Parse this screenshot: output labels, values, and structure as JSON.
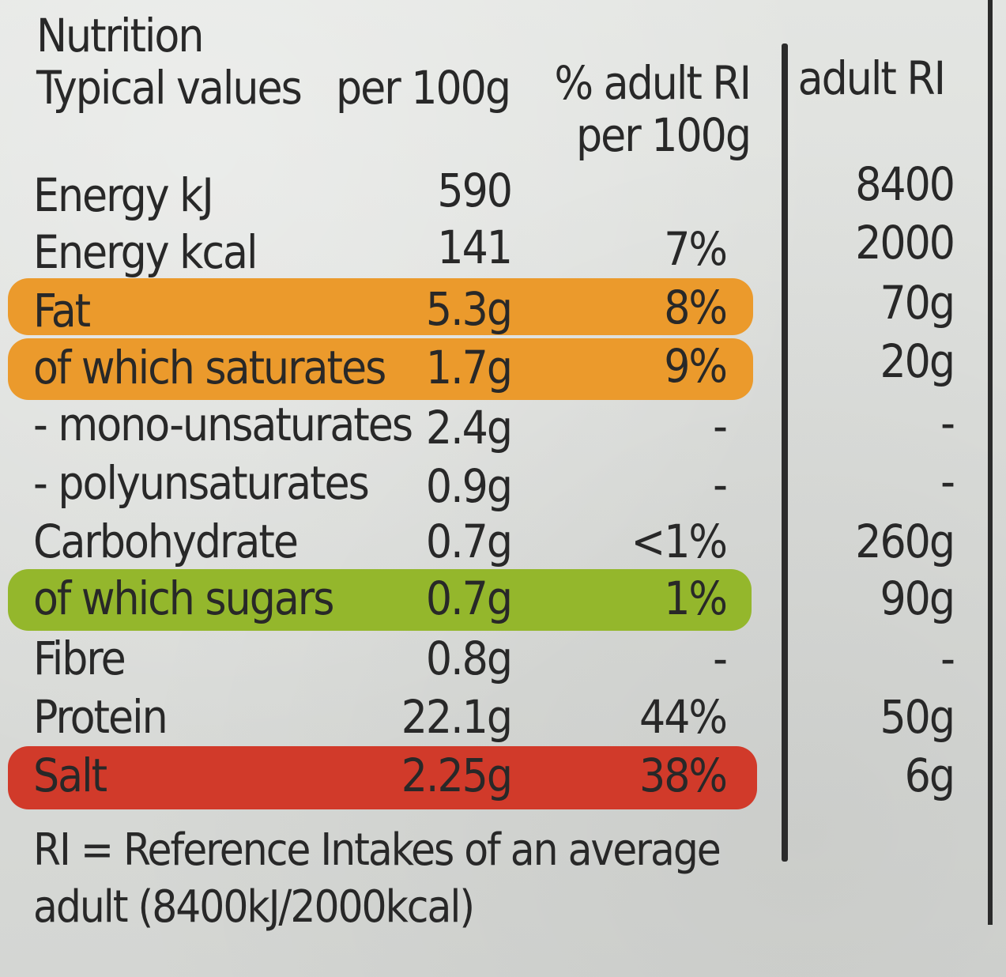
{
  "header": {
    "title": "Nutrition",
    "typical_values": "Typical values",
    "per_100g": "per 100g",
    "pct_adult_ri_line1": "% adult RI",
    "pct_adult_ri_line2": "per 100g",
    "adult_ri": "adult RI"
  },
  "rows": [
    {
      "name": "Energy kJ",
      "per100g": "590",
      "pct_ri": "",
      "adult_ri": "8400",
      "highlight": "none"
    },
    {
      "name": "Energy kcal",
      "per100g": "141",
      "pct_ri": "7%",
      "adult_ri": "2000",
      "highlight": "none"
    },
    {
      "name": "Fat",
      "per100g": "5.3g",
      "pct_ri": "8%",
      "adult_ri": "70g",
      "highlight": "amber"
    },
    {
      "name": "of which saturates",
      "per100g": "1.7g",
      "pct_ri": "9%",
      "adult_ri": "20g",
      "highlight": "amber"
    },
    {
      "name": "- mono-unsaturates",
      "per100g": "2.4g",
      "pct_ri": "-",
      "adult_ri": "-",
      "highlight": "none"
    },
    {
      "name": "- polyunsaturates",
      "per100g": "0.9g",
      "pct_ri": "-",
      "adult_ri": "-",
      "highlight": "none"
    },
    {
      "name": "Carbohydrate",
      "per100g": "0.7g",
      "pct_ri": "<1%",
      "adult_ri": "260g",
      "highlight": "none"
    },
    {
      "name": "of which sugars",
      "per100g": "0.7g",
      "pct_ri": "1%",
      "adult_ri": "90g",
      "highlight": "green"
    },
    {
      "name": "Fibre",
      "per100g": "0.8g",
      "pct_ri": "-",
      "adult_ri": "-",
      "highlight": "none"
    },
    {
      "name": "Protein",
      "per100g": "22.1g",
      "pct_ri": "44%",
      "adult_ri": "50g",
      "highlight": "none"
    },
    {
      "name": "Salt",
      "per100g": "2.25g",
      "pct_ri": "38%",
      "adult_ri": "6g",
      "highlight": "red"
    }
  ],
  "footnote": {
    "line1": "RI = Reference Intakes of an average",
    "line2": "adult (8400kJ/2000kcal)"
  },
  "colors": {
    "amber": "#eb9a2c",
    "green": "#94b72c",
    "red": "#d13a2a",
    "ink": "#282828"
  }
}
